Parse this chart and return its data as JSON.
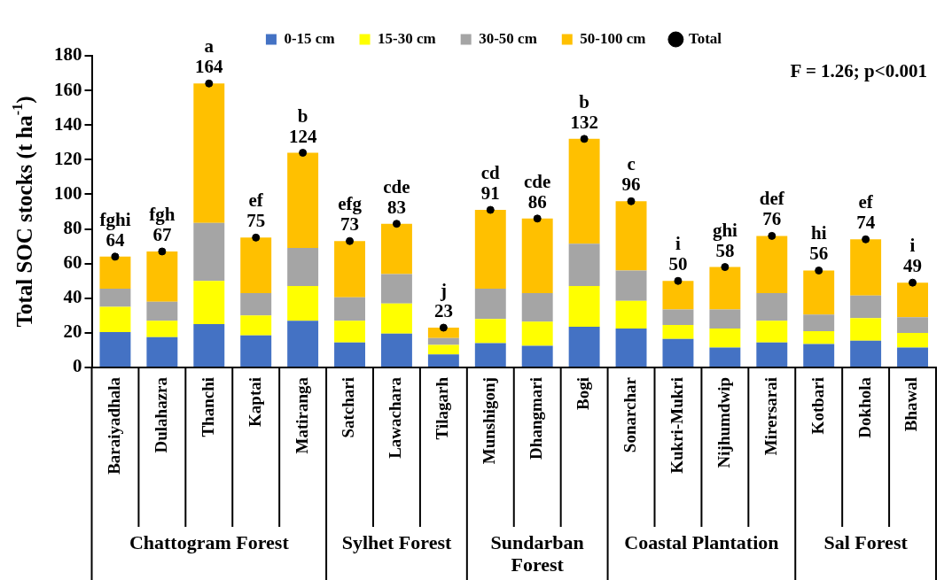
{
  "chart_data": {
    "type": "bar",
    "stacked": true,
    "ylabel": "Total SOC stocks (t ha$^{-1}$)",
    "categories": [
      "Baraiyadhala",
      "Dulahazra",
      "Thanchi",
      "Kaptai",
      "Matiranga",
      "Satchari",
      "Lawachara",
      "Tilagarh",
      "Munshigonj",
      "Dhangmari",
      "Bogi",
      "Sonarchar",
      "Kukri-Mukri",
      "Nijhumdwip",
      "Mirersarai",
      "Kotbari",
      "Dokhola",
      "Bhawal"
    ],
    "series": [
      {
        "name": "0-15 cm",
        "color": "#4472c4",
        "values": [
          20.5,
          17.5,
          25,
          18.5,
          27,
          14.5,
          19.5,
          7.5,
          14,
          12.5,
          23.5,
          22.5,
          16.5,
          11.5,
          14.5,
          13.5,
          15.5,
          11.5
        ]
      },
      {
        "name": "15-30 cm",
        "color": "#ffff00",
        "values": [
          14.5,
          9.5,
          25,
          11.5,
          20,
          12.5,
          17.5,
          5.5,
          14,
          14,
          23.5,
          16,
          8,
          11,
          12.5,
          7.5,
          13,
          8.5
        ]
      },
      {
        "name": "30-50 cm",
        "color": "#a5a5a5",
        "values": [
          10.5,
          11,
          33.5,
          13,
          22,
          13.5,
          17,
          4,
          17.5,
          16.5,
          24.5,
          17.5,
          9,
          11,
          16,
          9.5,
          13,
          9
        ]
      },
      {
        "name": "50-100 cm",
        "color": "#ffc000",
        "values": [
          18.5,
          29,
          80.5,
          32,
          55,
          32.5,
          29,
          6,
          45.5,
          43,
          60.5,
          40,
          16.5,
          24.5,
          33,
          25.5,
          32.5,
          20
        ]
      },
      {
        "name": "Total",
        "type": "scatter",
        "color": "#000000",
        "values": [
          64,
          67,
          164,
          75,
          124,
          73,
          83,
          23,
          91,
          86,
          132,
          96,
          50,
          58,
          76,
          56,
          74,
          49
        ],
        "value_labels": [
          "fghi\n64",
          "fgh\n67",
          "a\n164",
          "ef\n75",
          "b\n124",
          "efg\n73",
          "cde\n83",
          "j\n23",
          "cd\n91",
          "cde\n86",
          "b\n132",
          "c\n96",
          "i\n50",
          "ghi\n58",
          "def\n76",
          "hi\n56",
          "ef\n74",
          "i\n49"
        ]
      }
    ],
    "ylim": [
      0,
      180
    ],
    "yticks": [
      0,
      20,
      40,
      60,
      80,
      100,
      120,
      140,
      160,
      180
    ],
    "grid": false,
    "legend": "top",
    "marker": "circle",
    "annotations": [
      "F = 1.26; p<0.001",
      "Chattogram Forest",
      "Sylhet Forest",
      "Sundarban Forest",
      "Coastal Plantation",
      "Sal Forest"
    ]
  }
}
